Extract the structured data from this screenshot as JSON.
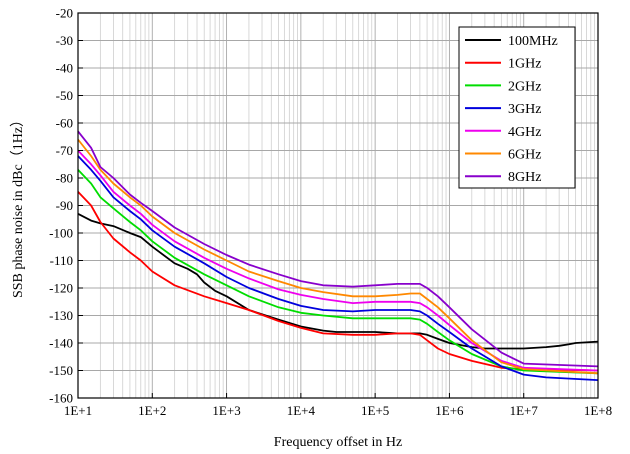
{
  "chart_data": {
    "type": "line",
    "xscale": "log",
    "xlim": [
      10,
      100000000
    ],
    "ylim": [
      -160,
      -20
    ],
    "xlabel": "Frequency offset in Hz",
    "ylabel": "SSB phase noise in dBc（1Hz）",
    "x_tick_labels": [
      "1E+1",
      "1E+2",
      "1E+3",
      "1E+4",
      "1E+5",
      "1E+6",
      "1E+7",
      "1E+8"
    ],
    "y_tick_labels": [
      "-20",
      "-30",
      "-40",
      "-50",
      "-60",
      "-70",
      "-80",
      "-90",
      "-100",
      "-110",
      "-120",
      "-130",
      "-140",
      "-150",
      "-160"
    ],
    "grid": true,
    "legend_position": "top-right",
    "series": [
      {
        "name": "100MHz",
        "color": "#000000",
        "x": [
          10,
          15,
          20,
          30,
          50,
          70,
          100,
          200,
          300,
          400,
          500,
          700,
          1000,
          2000,
          5000,
          10000,
          20000,
          30000,
          50000,
          100000,
          200000,
          300000,
          400000,
          500000,
          700000,
          1000000,
          2000000,
          3000000,
          5000000,
          10000000,
          20000000,
          30000000,
          40000000,
          50000000,
          100000000
        ],
        "y": [
          -93,
          -95.5,
          -96.5,
          -97.5,
          -100,
          -101.5,
          -105,
          -111,
          -113,
          -115,
          -118,
          -121,
          -123,
          -128,
          -131.5,
          -134,
          -135.5,
          -136,
          -136,
          -136,
          -136.5,
          -136.5,
          -136.5,
          -137,
          -138.5,
          -140,
          -141.5,
          -142,
          -142,
          -142,
          -141.5,
          -141,
          -140.5,
          -140,
          -139.5
        ]
      },
      {
        "name": "1GHz",
        "color": "#ff0000",
        "x": [
          10,
          15,
          20,
          30,
          50,
          70,
          100,
          200,
          500,
          1000,
          2000,
          5000,
          10000,
          20000,
          50000,
          100000,
          200000,
          300000,
          400000,
          500000,
          700000,
          1000000,
          2000000,
          5000000,
          10000000,
          100000000
        ],
        "y": [
          -85,
          -90,
          -96,
          -102,
          -107,
          -110,
          -114,
          -119,
          -123,
          -125.5,
          -128,
          -132,
          -134.5,
          -136.5,
          -137,
          -137,
          -136.5,
          -136.5,
          -137,
          -139,
          -142,
          -144,
          -146.5,
          -149,
          -149.5,
          -150
        ]
      },
      {
        "name": "2GHz",
        "color": "#00dd00",
        "x": [
          10,
          15,
          20,
          30,
          50,
          70,
          100,
          200,
          500,
          1000,
          2000,
          5000,
          10000,
          20000,
          50000,
          100000,
          200000,
          300000,
          400000,
          500000,
          700000,
          1000000,
          2000000,
          5000000,
          10000000,
          100000000
        ],
        "y": [
          -77,
          -82,
          -87,
          -91,
          -96,
          -99,
          -103,
          -109,
          -115,
          -119,
          -123,
          -127,
          -129,
          -130,
          -131,
          -131,
          -131,
          -131,
          -131.5,
          -133,
          -136,
          -139,
          -144,
          -148.5,
          -150,
          -151
        ]
      },
      {
        "name": "3GHz",
        "color": "#0000dd",
        "x": [
          10,
          15,
          20,
          30,
          50,
          70,
          100,
          200,
          500,
          1000,
          2000,
          5000,
          10000,
          20000,
          50000,
          100000,
          200000,
          300000,
          400000,
          500000,
          700000,
          1000000,
          2000000,
          5000000,
          10000000,
          20000000,
          100000000
        ],
        "y": [
          -72,
          -77,
          -81,
          -87,
          -92,
          -95,
          -99,
          -105,
          -111,
          -116,
          -120,
          -124,
          -126.5,
          -128,
          -128.5,
          -128,
          -128,
          -128,
          -128.5,
          -130,
          -133,
          -136,
          -142,
          -148.5,
          -151.5,
          -152.5,
          -153.5
        ]
      },
      {
        "name": "4GHz",
        "color": "#ee00ee",
        "x": [
          10,
          15,
          20,
          30,
          50,
          70,
          100,
          200,
          500,
          1000,
          2000,
          5000,
          10000,
          20000,
          50000,
          100000,
          200000,
          300000,
          400000,
          500000,
          700000,
          1000000,
          2000000,
          5000000,
          10000000,
          100000000
        ],
        "y": [
          -70,
          -75,
          -79,
          -85,
          -90,
          -93,
          -97,
          -103,
          -109,
          -113,
          -116.5,
          -120.5,
          -122.5,
          -124,
          -125.5,
          -125,
          -125,
          -125,
          -125.5,
          -127,
          -130,
          -133.5,
          -140,
          -146.5,
          -149,
          -150
        ]
      },
      {
        "name": "6GHz",
        "color": "#ff8800",
        "x": [
          10,
          15,
          20,
          30,
          50,
          70,
          100,
          200,
          500,
          1000,
          2000,
          5000,
          10000,
          20000,
          50000,
          100000,
          200000,
          300000,
          400000,
          500000,
          700000,
          1000000,
          2000000,
          5000000,
          10000000,
          100000000
        ],
        "y": [
          -66,
          -72,
          -77,
          -82,
          -87,
          -90,
          -94,
          -100,
          -106,
          -110,
          -114,
          -117.5,
          -120,
          -121.5,
          -123,
          -123,
          -122.5,
          -122,
          -122,
          -124,
          -127,
          -131,
          -139,
          -147,
          -149.5,
          -151
        ]
      },
      {
        "name": "8GHz",
        "color": "#8800cc",
        "x": [
          10,
          15,
          20,
          30,
          50,
          70,
          100,
          200,
          500,
          1000,
          2000,
          5000,
          10000,
          20000,
          50000,
          100000,
          200000,
          300000,
          400000,
          500000,
          700000,
          1000000,
          2000000,
          5000000,
          10000000,
          100000000
        ],
        "y": [
          -63,
          -69,
          -76,
          -80,
          -86,
          -89,
          -92,
          -98,
          -104,
          -108,
          -111.5,
          -115,
          -117.5,
          -119,
          -119.5,
          -119,
          -118.5,
          -118.5,
          -118.5,
          -120,
          -123,
          -127,
          -135,
          -143.5,
          -147.5,
          -148.5
        ]
      }
    ]
  }
}
